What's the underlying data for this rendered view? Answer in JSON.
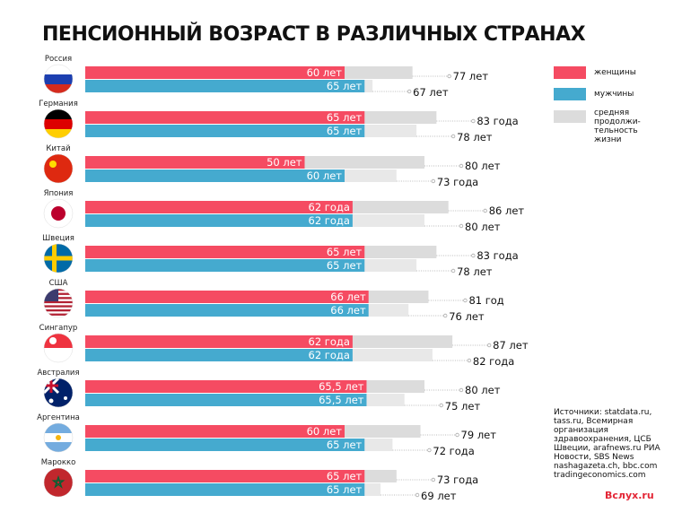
{
  "title": "ПЕНСИОННЫЙ ВОЗРАСТ В РАЗЛИЧНЫХ СТРАНАХ",
  "legend": {
    "women": "женщины",
    "men": "мужчины",
    "life": "средняя продолжи-тельность жизни"
  },
  "colors": {
    "women": "#f54b62",
    "men": "#45aacf",
    "life_women": "#dcdcdc",
    "life_men": "#e8e8e8"
  },
  "sources": "Источники: statdata.ru, tass.ru, Всемирная организация здравоохранения, ЦСБ Швеции, arafnews.ru РИА Новости, SBS News nashagazeta.ch, bbc.com tradingeconomics.com",
  "logo": "Вслух.ru",
  "chart_data": {
    "type": "bar",
    "title": "ПЕНСИОННЫЙ ВОЗРАСТ В РАЗЛИЧНЫХ СТРАНАХ",
    "categories": [
      "Россия",
      "Германия",
      "Китай",
      "Япония",
      "Швеция",
      "США",
      "Сингапур",
      "Австралия",
      "Аргентина",
      "Марокко"
    ],
    "flags": [
      "russia",
      "germany",
      "china",
      "japan",
      "sweden",
      "usa",
      "singapore",
      "australia",
      "argentina",
      "morocco"
    ],
    "series": [
      {
        "name": "женщины",
        "values": [
          60,
          65,
          50,
          62,
          65,
          66,
          62,
          65.5,
          60,
          65
        ],
        "labels": [
          "60 лет",
          "65 лет",
          "50 лет",
          "62 года",
          "65 лет",
          "66 лет",
          "62 года",
          "65,5 лет",
          "60 лет",
          "65 лет"
        ]
      },
      {
        "name": "мужчины",
        "values": [
          65,
          65,
          60,
          62,
          65,
          66,
          62,
          65.5,
          65,
          65
        ],
        "labels": [
          "65 лет",
          "65 лет",
          "60 лет",
          "62 года",
          "65 лет",
          "66 лет",
          "62 года",
          "65,5 лет",
          "65 лет",
          "65 лет"
        ]
      },
      {
        "name": "средняя продолжительность жизни (женщины)",
        "values": [
          77,
          83,
          80,
          86,
          83,
          81,
          87,
          80,
          79,
          73
        ],
        "labels": [
          "77 лет",
          "83 года",
          "80 лет",
          "86 лет",
          "83 года",
          "81 год",
          "87 лет",
          "80 лет",
          "79 лет",
          "73 года"
        ]
      },
      {
        "name": "средняя продолжительность жизни (мужчины)",
        "values": [
          67,
          78,
          73,
          80,
          78,
          76,
          82,
          75,
          72,
          69
        ],
        "labels": [
          "67 лет",
          "78 лет",
          "73 года",
          "80 лет",
          "78 лет",
          "76 лет",
          "82 года",
          "75 лет",
          "72 года",
          "69 лет"
        ]
      }
    ]
  }
}
